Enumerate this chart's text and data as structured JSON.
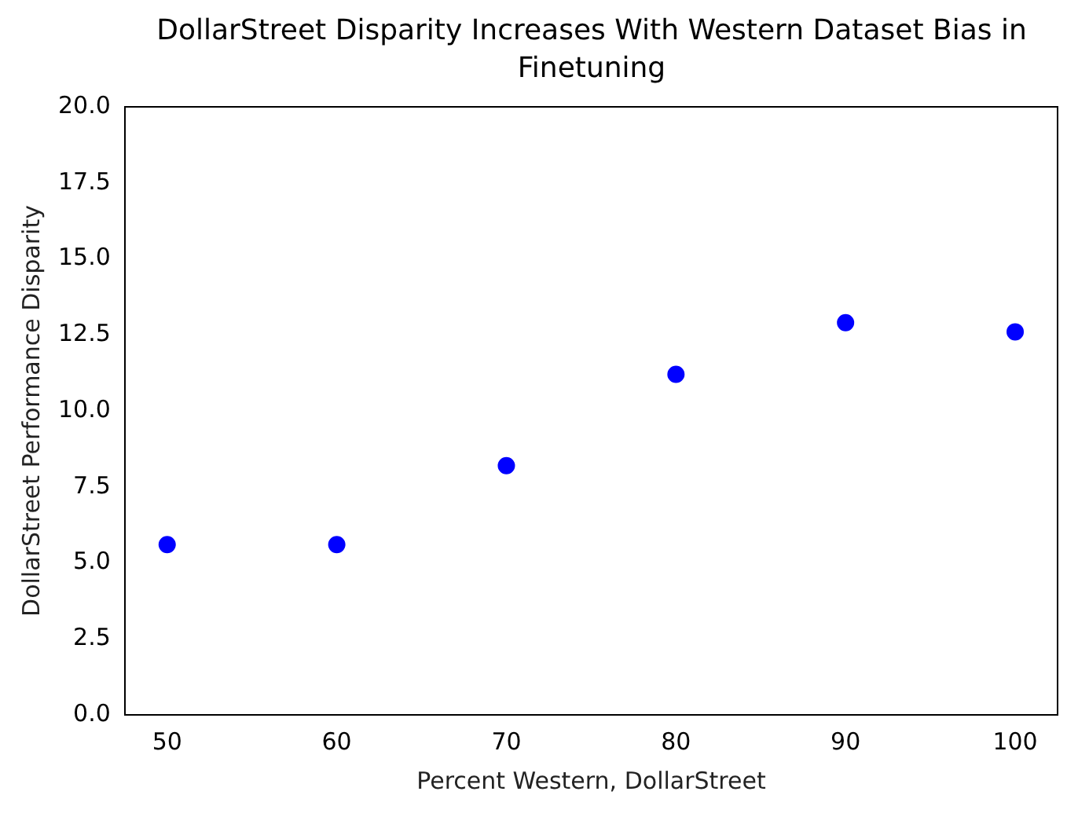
{
  "chart_data": {
    "type": "scatter",
    "title": "DollarStreet Disparity Increases With Western Dataset Bias in Finetuning",
    "xlabel": "Percent Western, DollarStreet",
    "ylabel": "DollarStreet Performance Disparity",
    "x": [
      50,
      60,
      70,
      80,
      90,
      100
    ],
    "series": [
      {
        "color": "#0000ff",
        "values": [
          5.6,
          5.6,
          8.2,
          11.2,
          12.9,
          12.6
        ]
      }
    ],
    "xlim": [
      47.5,
      102.5
    ],
    "xticks": [
      50,
      60,
      70,
      80,
      90,
      100
    ],
    "ylim": [
      0,
      20
    ],
    "yticks": [
      {
        "value": 0,
        "label": "0.0"
      },
      {
        "value": 2.5,
        "label": "2.5"
      },
      {
        "value": 5,
        "label": "5.0"
      },
      {
        "value": 7.5,
        "label": "7.5"
      },
      {
        "value": 10,
        "label": "10.0"
      },
      {
        "value": 12.5,
        "label": "12.5"
      },
      {
        "value": 15,
        "label": "15.0"
      },
      {
        "value": 17.5,
        "label": "17.5"
      },
      {
        "value": 20,
        "label": "20.0"
      }
    ],
    "grid": false,
    "legend": false,
    "marker": "circle"
  }
}
